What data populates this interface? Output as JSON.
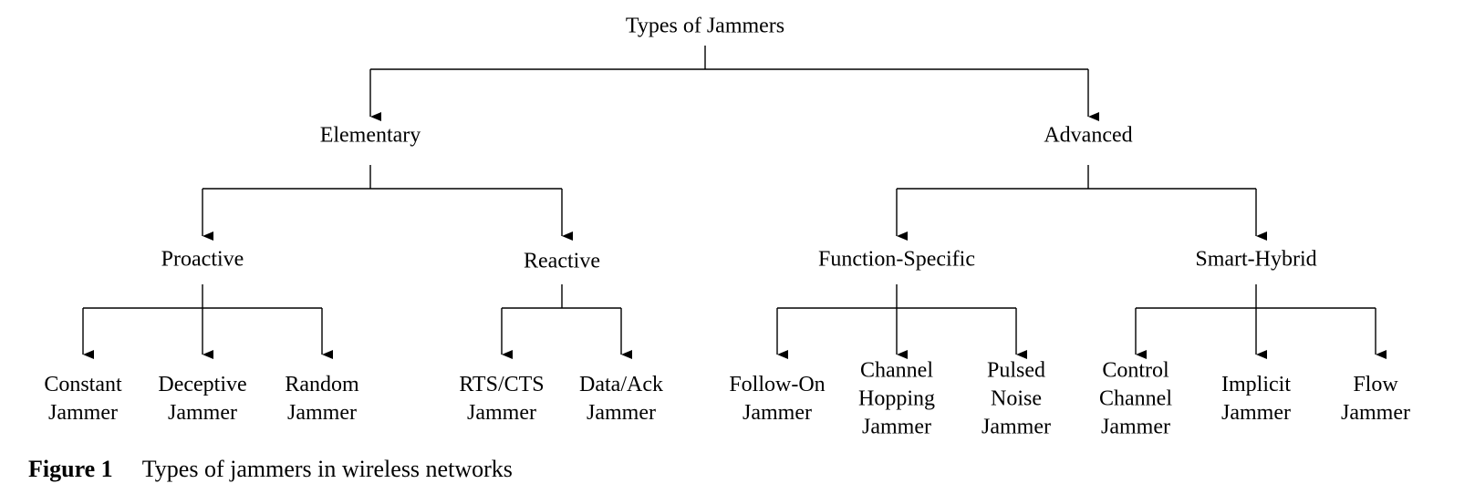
{
  "diagram": {
    "root": "Types of Jammers",
    "level1": [
      {
        "id": "elementary",
        "label": "Elementary"
      },
      {
        "id": "advanced",
        "label": "Advanced"
      }
    ],
    "level2": [
      {
        "id": "proactive",
        "label": "Proactive"
      },
      {
        "id": "reactive",
        "label": "Reactive"
      },
      {
        "id": "function-specific",
        "label": "Function-Specific"
      },
      {
        "id": "smart-hybrid",
        "label": "Smart-Hybrid"
      }
    ],
    "leaves": [
      {
        "id": "constant",
        "lines": [
          "Constant",
          "Jammer"
        ]
      },
      {
        "id": "deceptive",
        "lines": [
          "Deceptive",
          "Jammer"
        ]
      },
      {
        "id": "random",
        "lines": [
          "Random",
          "Jammer"
        ]
      },
      {
        "id": "rts-cts",
        "lines": [
          "RTS/CTS",
          "Jammer"
        ]
      },
      {
        "id": "data-ack",
        "lines": [
          "Data/Ack",
          "Jammer"
        ]
      },
      {
        "id": "follow-on",
        "lines": [
          "Follow-On",
          "Jammer"
        ]
      },
      {
        "id": "channel-hopping",
        "lines": [
          "Channel",
          "Hopping",
          "Jammer"
        ]
      },
      {
        "id": "pulsed-noise",
        "lines": [
          "Pulsed",
          "Noise",
          "Jammer"
        ]
      },
      {
        "id": "control-channel",
        "lines": [
          "Control",
          "Channel",
          "Jammer"
        ]
      },
      {
        "id": "implicit",
        "lines": [
          "Implicit",
          "Jammer"
        ]
      },
      {
        "id": "flow",
        "lines": [
          "Flow",
          "Jammer"
        ]
      }
    ]
  },
  "caption": {
    "label": "Figure 1",
    "text": "Types of jammers in wireless networks"
  }
}
